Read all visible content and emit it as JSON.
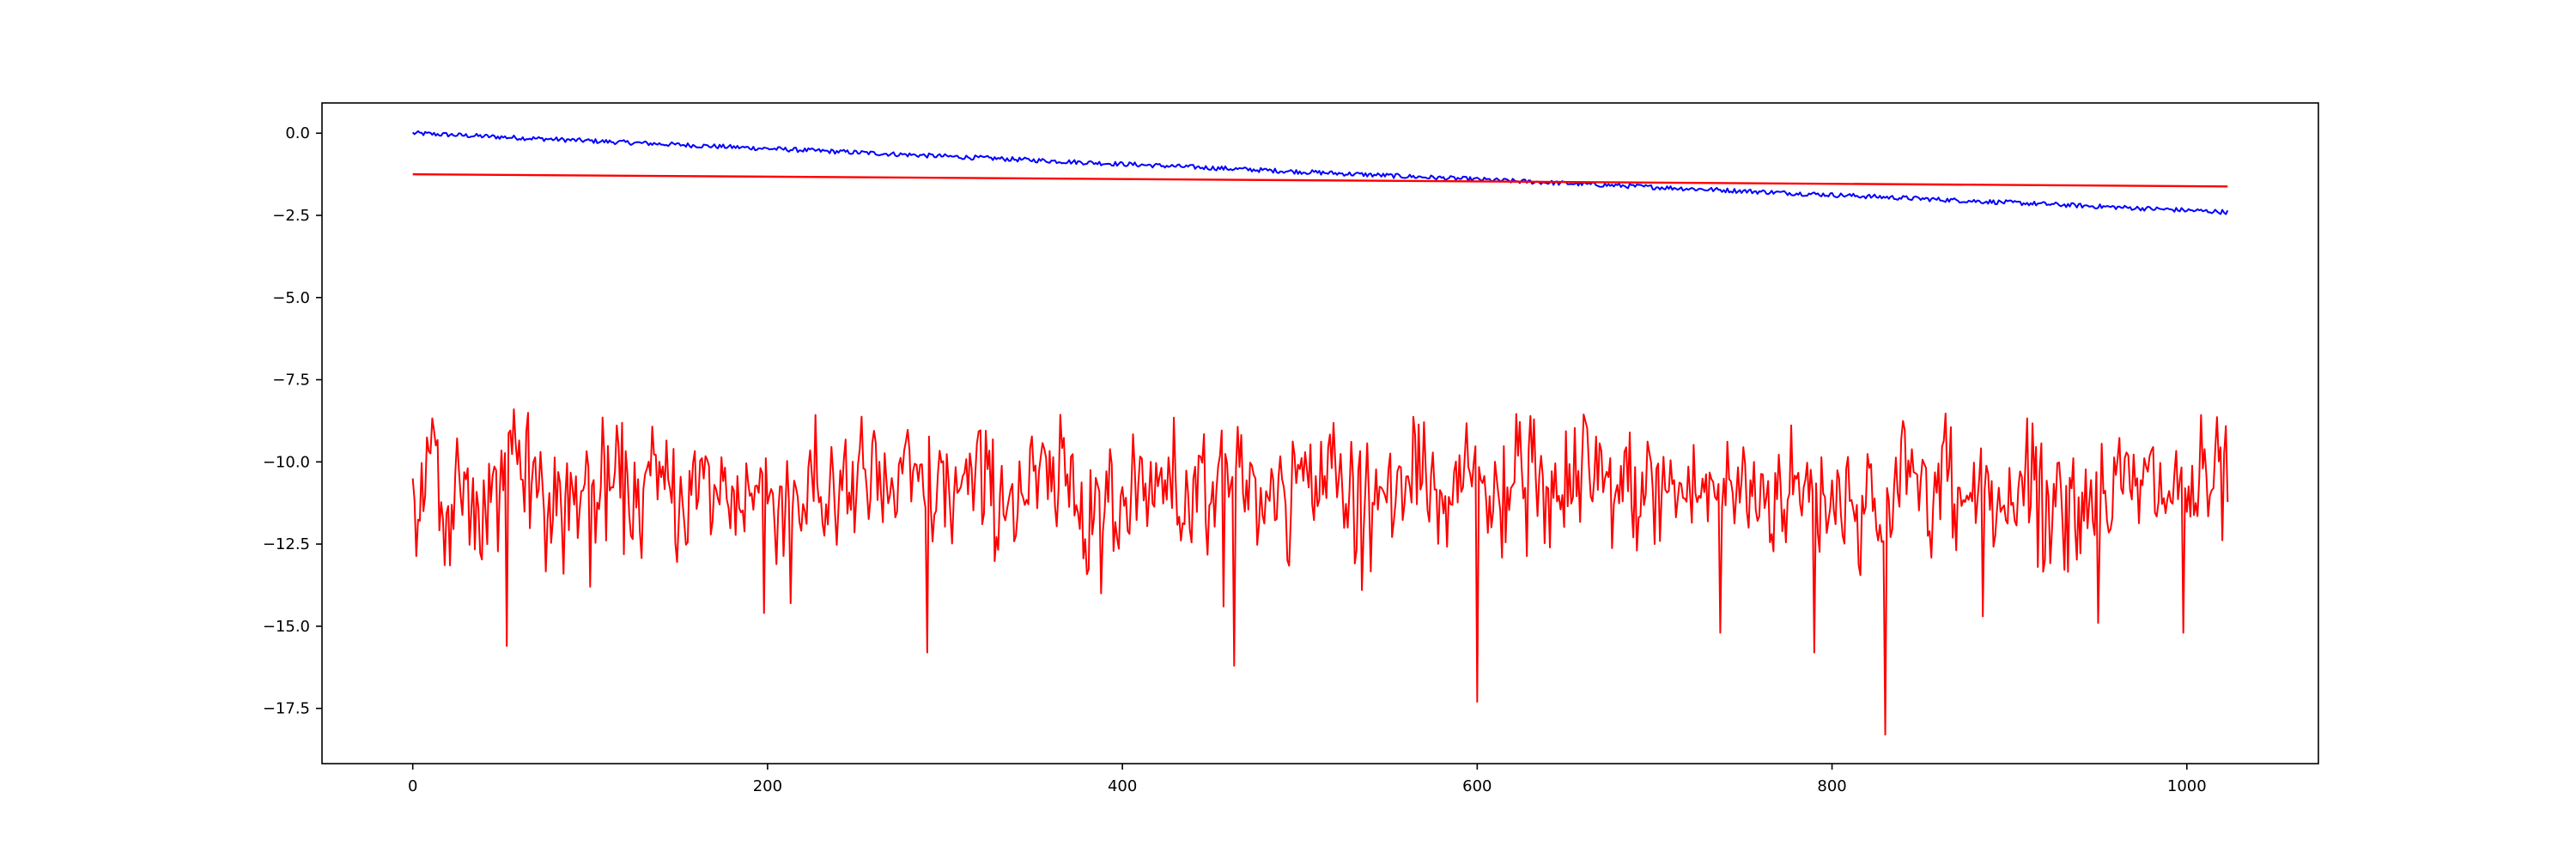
{
  "chart_data": {
    "type": "line",
    "title": "",
    "xlabel": "",
    "ylabel": "",
    "xlim": [
      -51.15,
      1074.15
    ],
    "ylim": [
      -19.18,
      0.92
    ],
    "x_ticks": [
      0,
      200,
      400,
      600,
      800,
      1000
    ],
    "y_ticks": [
      0.0,
      -2.5,
      -5.0,
      -7.5,
      -10.0,
      -12.5,
      -15.0,
      -17.5
    ],
    "x_tick_labels": [
      "0",
      "200",
      "400",
      "600",
      "800",
      "1000"
    ],
    "y_tick_labels": [
      "0.0",
      "−2.5",
      "−5.0",
      "−7.5",
      "−10.0",
      "−12.5",
      "−15.0",
      "−17.5"
    ],
    "grid": false,
    "series": [
      {
        "color": "#0000ff",
        "style": "noisy-line",
        "n_points": 1024,
        "x_range": [
          0,
          1023
        ],
        "start_value": 0.0,
        "end_value": -2.4,
        "noise_amplitude": 0.07
      },
      {
        "color": "#ff0000",
        "style": "straight-line",
        "x": [
          0,
          1023
        ],
        "values": [
          -1.25,
          -1.62
        ]
      },
      {
        "color": "#ff0000",
        "style": "noisy-line",
        "n_points": 1024,
        "x_range": [
          0,
          1023
        ],
        "mean_value": -10.9,
        "typical_min": -13.5,
        "typical_max": -8.5,
        "spikes": [
          {
            "x": 53,
            "value": -15.6
          },
          {
            "x": 57,
            "value": -8.4
          },
          {
            "x": 100,
            "value": -13.8
          },
          {
            "x": 198,
            "value": -14.6
          },
          {
            "x": 213,
            "value": -14.3
          },
          {
            "x": 290,
            "value": -15.8
          },
          {
            "x": 388,
            "value": -14.0
          },
          {
            "x": 457,
            "value": -14.4
          },
          {
            "x": 463,
            "value": -16.2
          },
          {
            "x": 535,
            "value": -13.9
          },
          {
            "x": 600,
            "value": -17.3
          },
          {
            "x": 630,
            "value": -8.6
          },
          {
            "x": 737,
            "value": -15.2
          },
          {
            "x": 790,
            "value": -15.8
          },
          {
            "x": 830,
            "value": -18.3
          },
          {
            "x": 885,
            "value": -14.7
          },
          {
            "x": 950,
            "value": -14.9
          },
          {
            "x": 998,
            "value": -15.2
          }
        ]
      }
    ]
  }
}
